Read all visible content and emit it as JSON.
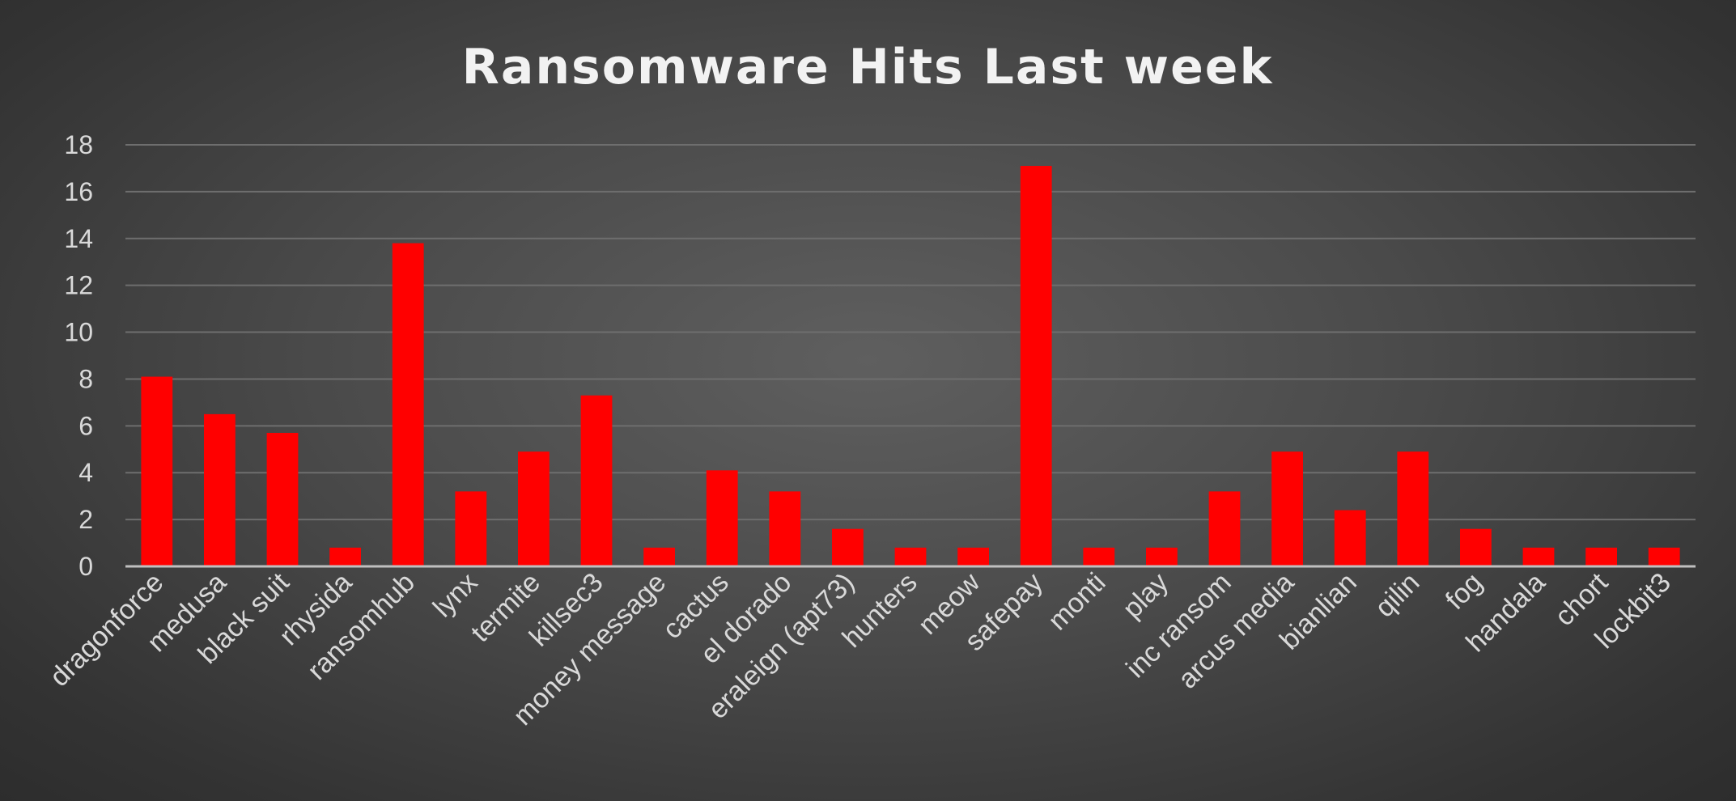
{
  "chart_data": {
    "type": "bar",
    "title": "Ransomware Hits Last week",
    "xlabel": "",
    "ylabel": "",
    "ylim": [
      0,
      18
    ],
    "yticks": [
      0,
      2,
      4,
      6,
      8,
      10,
      12,
      14,
      16,
      18
    ],
    "grid": true,
    "legend": "none",
    "bar_color": "#ff0000",
    "categories": [
      "dragonforce",
      "medusa",
      "black suit",
      "rhysida",
      "ransomhub",
      "lynx",
      "termite",
      "killsec3",
      "money message",
      "cactus",
      "el dorado",
      "eraleign (apt73)",
      "hunters",
      "meow",
      "safepay",
      "monti",
      "play",
      "inc ransom",
      "arcus media",
      "bianlian",
      "qilin",
      "fog",
      "handala",
      "chort",
      "lockbit3"
    ],
    "values": [
      8.1,
      6.5,
      5.7,
      0.8,
      13.8,
      3.2,
      4.9,
      7.3,
      0.8,
      4.1,
      3.2,
      1.6,
      0.8,
      0.8,
      17.1,
      0.8,
      0.8,
      3.2,
      4.9,
      2.4,
      4.9,
      1.6,
      0.8,
      0.8,
      0.8
    ]
  }
}
